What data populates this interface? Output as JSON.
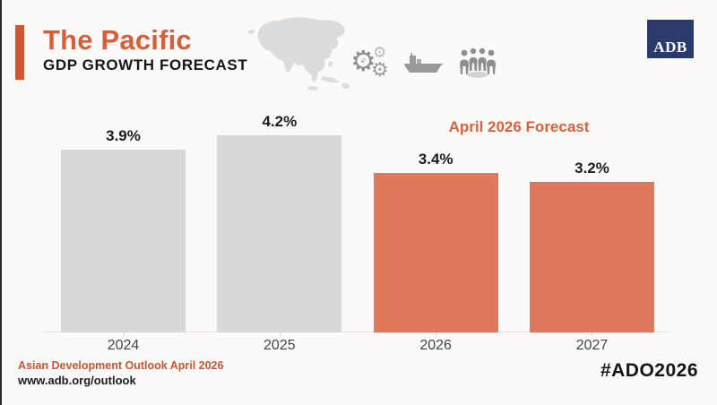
{
  "header": {
    "title": "The Pacific",
    "subtitle": "GDP GROWTH FORECAST",
    "accent_color": "#cf5732",
    "title_color": "#d85e3a",
    "icons": [
      "asia-map-icon",
      "economy-gears-icon",
      "cargo-ship-icon",
      "people-group-icon"
    ],
    "logo": {
      "text": "ADB",
      "background_color": "#293a6b",
      "text_color": "#ffffff"
    }
  },
  "chart_data": {
    "type": "bar",
    "title": "The Pacific — GDP Growth Forecast",
    "categories": [
      "2024",
      "2025",
      "2026",
      "2027"
    ],
    "values": [
      3.9,
      4.2,
      3.4,
      3.2
    ],
    "value_labels": [
      "3.9%",
      "4.2%",
      "3.4%",
      "3.2%"
    ],
    "series_status": [
      "historical",
      "historical",
      "forecast",
      "forecast"
    ],
    "colors": {
      "historical": "#d9d8d6",
      "forecast": "#e0795c"
    },
    "annotation": "April 2026 Forecast",
    "annotation_color": "#d8603d",
    "xlabel": "",
    "ylabel": "",
    "ylim": [
      0,
      4.4
    ],
    "grid": false,
    "x_axis_line": true,
    "legend": "none"
  },
  "footer": {
    "line1": "Asian Development Outlook April 2026",
    "line2": "www.adb.org/outlook",
    "hashtag": "#ADO2026"
  }
}
